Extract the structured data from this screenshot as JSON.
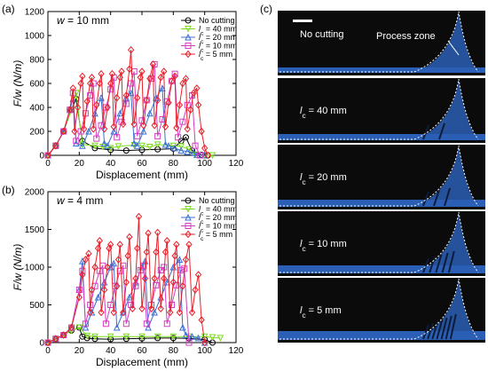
{
  "panels": {
    "a": {
      "label": "(a)",
      "annotation": "w = 10 mm"
    },
    "b": {
      "label": "(b)",
      "annotation": "w = 4 mm"
    },
    "c": {
      "label": "(c)"
    }
  },
  "photo_panel": {
    "labels": [
      "No cutting",
      "l_c = 40 mm",
      "l_c = 20 mm",
      "l_c = 10 mm",
      "l_c = 5 mm"
    ],
    "process_zone_label": "Process zone",
    "background_color": "#0b0b0b",
    "gel_color": "#2a5fb5",
    "dashed_color": "#ffffff"
  },
  "chart_data": [
    {
      "type": "line",
      "panel": "a",
      "annotation": "w = 10 mm",
      "xlabel": "Displacement (mm)",
      "ylabel": "F/w (N/m)",
      "xlim": [
        0,
        120
      ],
      "ylim": [
        0,
        1200
      ],
      "xticks": [
        0,
        20,
        40,
        60,
        80,
        100,
        120
      ],
      "yticks": [
        0,
        200,
        400,
        600,
        800,
        1000,
        1200
      ],
      "legend_position": "top-right",
      "series": [
        {
          "name": "No cutting",
          "color": "#000000",
          "marker": "circle",
          "x": [
            0,
            5,
            10,
            15,
            18,
            22,
            30,
            40,
            50,
            60,
            70,
            80,
            85,
            88,
            92,
            98,
            102
          ],
          "y": [
            0,
            80,
            200,
            380,
            470,
            120,
            60,
            45,
            40,
            45,
            50,
            55,
            120,
            150,
            40,
            5,
            0
          ]
        },
        {
          "name": "l_c = 40 mm",
          "color": "#7ddc1f",
          "marker": "triangle-down",
          "x": [
            0,
            5,
            10,
            15,
            18,
            22,
            30,
            35,
            40,
            45,
            55,
            60,
            65,
            70,
            80,
            85,
            90,
            94,
            100,
            105
          ],
          "y": [
            0,
            80,
            200,
            380,
            520,
            90,
            80,
            70,
            60,
            75,
            85,
            80,
            70,
            90,
            80,
            75,
            50,
            5,
            0,
            0
          ]
        },
        {
          "name": "l_c = 20 mm",
          "color": "#3b6fd4",
          "marker": "triangle-up",
          "x": [
            0,
            5,
            10,
            14,
            16,
            18,
            22,
            26,
            30,
            34,
            36,
            38,
            42,
            46,
            50,
            53,
            55,
            57,
            61,
            65,
            69,
            73,
            75,
            77,
            81,
            85,
            89,
            93,
            95,
            100
          ],
          "y": [
            0,
            80,
            200,
            380,
            470,
            100,
            80,
            200,
            350,
            480,
            100,
            80,
            200,
            350,
            480,
            520,
            100,
            80,
            200,
            350,
            480,
            560,
            90,
            80,
            60,
            40,
            30,
            20,
            5,
            0
          ]
        },
        {
          "name": "l_c = 10 mm",
          "color": "#d63cc4",
          "marker": "square",
          "x": [
            0,
            5,
            10,
            14,
            16,
            18,
            21,
            24,
            27,
            29,
            31,
            34,
            37,
            40,
            42,
            44,
            47,
            50,
            53,
            55,
            57,
            60,
            63,
            66,
            68,
            70,
            73,
            76,
            79,
            81,
            83,
            86,
            89,
            92,
            94,
            97
          ],
          "y": [
            0,
            80,
            200,
            380,
            520,
            120,
            200,
            350,
            500,
            600,
            140,
            250,
            400,
            550,
            650,
            150,
            280,
            430,
            600,
            700,
            160,
            290,
            460,
            640,
            760,
            160,
            300,
            450,
            620,
            680,
            150,
            280,
            420,
            500,
            80,
            0
          ]
        },
        {
          "name": "l_c = 5 mm",
          "color": "#e8202a",
          "marker": "diamond",
          "x": [
            0,
            5,
            10,
            14,
            16,
            17,
            19,
            21,
            22,
            23,
            25,
            27,
            28,
            29,
            31,
            33,
            34,
            36,
            38,
            40,
            41,
            42,
            44,
            46,
            47,
            48,
            50,
            52,
            53,
            55,
            57,
            59,
            60,
            61,
            63,
            65,
            67,
            68,
            70,
            72,
            74,
            75,
            77,
            79,
            81,
            82,
            84,
            86,
            88,
            89,
            91,
            93,
            95,
            96,
            98,
            100,
            102
          ],
          "y": [
            0,
            80,
            200,
            380,
            560,
            200,
            400,
            600,
            660,
            220,
            450,
            600,
            650,
            220,
            420,
            600,
            680,
            220,
            400,
            600,
            680,
            240,
            480,
            650,
            700,
            260,
            500,
            720,
            880,
            260,
            480,
            650,
            700,
            250,
            460,
            640,
            760,
            250,
            460,
            650,
            700,
            240,
            440,
            620,
            660,
            230,
            420,
            600,
            640,
            220,
            380,
            520,
            560,
            420,
            200,
            60,
            0
          ]
        }
      ]
    },
    {
      "type": "line",
      "panel": "b",
      "annotation": "w = 4 mm",
      "xlabel": "Displacement (mm)",
      "ylabel": "F/w (N/m)",
      "xlim": [
        0,
        120
      ],
      "ylim": [
        0,
        2000
      ],
      "xticks": [
        0,
        20,
        40,
        60,
        80,
        100,
        120
      ],
      "yticks": [
        0,
        500,
        1000,
        1500,
        2000
      ],
      "legend_position": "top-right",
      "series": [
        {
          "name": "No cutting",
          "color": "#000000",
          "marker": "circle",
          "x": [
            0,
            5,
            10,
            15,
            20,
            22,
            25,
            30,
            40,
            50,
            60,
            70,
            80,
            90,
            100,
            105
          ],
          "y": [
            0,
            50,
            100,
            160,
            200,
            80,
            60,
            50,
            45,
            50,
            55,
            60,
            60,
            55,
            40,
            0
          ]
        },
        {
          "name": "l_c = 40 mm",
          "color": "#7ddc1f",
          "marker": "triangle-down",
          "x": [
            0,
            5,
            10,
            15,
            20,
            25,
            30,
            40,
            50,
            60,
            70,
            80,
            90,
            100,
            105,
            110
          ],
          "y": [
            0,
            50,
            100,
            160,
            200,
            90,
            80,
            80,
            80,
            80,
            80,
            80,
            80,
            80,
            70,
            60
          ]
        },
        {
          "name": "l_c = 20 mm",
          "color": "#3b6fd4",
          "marker": "triangle-up",
          "x": [
            0,
            5,
            10,
            15,
            20,
            22,
            24,
            28,
            32,
            36,
            40,
            42,
            44,
            48,
            52,
            56,
            60,
            62,
            64,
            68,
            72,
            76,
            80,
            84,
            86,
            88,
            92,
            96,
            100
          ],
          "y": [
            0,
            50,
            100,
            200,
            700,
            1080,
            200,
            400,
            600,
            800,
            1000,
            1050,
            200,
            400,
            600,
            800,
            1000,
            1080,
            200,
            400,
            600,
            800,
            1000,
            1100,
            200,
            100,
            80,
            60,
            0
          ]
        },
        {
          "name": "l_c = 10 mm",
          "color": "#d63cc4",
          "marker": "square",
          "x": [
            0,
            5,
            10,
            15,
            20,
            22,
            24,
            27,
            30,
            33,
            35,
            37,
            40,
            43,
            46,
            48,
            50,
            53,
            56,
            59,
            61,
            63,
            66,
            69,
            72,
            74,
            76,
            79,
            82,
            85,
            87,
            90
          ],
          "y": [
            0,
            50,
            100,
            200,
            700,
            950,
            250,
            500,
            750,
            950,
            1020,
            250,
            500,
            750,
            950,
            1020,
            250,
            500,
            750,
            960,
            1020,
            250,
            500,
            760,
            960,
            1000,
            250,
            500,
            760,
            960,
            980,
            0
          ]
        },
        {
          "name": "l_c = 5 mm",
          "color": "#e8202a",
          "marker": "diamond",
          "x": [
            0,
            5,
            10,
            15,
            20,
            22,
            24,
            26,
            27,
            28,
            30,
            32,
            33,
            34,
            36,
            38,
            39,
            40,
            42,
            44,
            45,
            46,
            48,
            50,
            51,
            52,
            54,
            56,
            57,
            58,
            60,
            62,
            63,
            64,
            66,
            68,
            69,
            70,
            72,
            74,
            75,
            76,
            78,
            80,
            81,
            82,
            84,
            86,
            88,
            90,
            92,
            94,
            96,
            98,
            100
          ],
          "y": [
            0,
            50,
            100,
            200,
            600,
            900,
            1100,
            1180,
            400,
            700,
            1000,
            1250,
            1350,
            400,
            700,
            1000,
            1250,
            1300,
            400,
            750,
            1100,
            1300,
            400,
            800,
            1150,
            1400,
            450,
            850,
            1250,
            1670,
            450,
            850,
            1200,
            1450,
            450,
            850,
            1200,
            1460,
            450,
            850,
            1200,
            1350,
            400,
            800,
            1150,
            1300,
            400,
            750,
            1100,
            1300,
            400,
            700,
            900,
            300,
            0
          ]
        }
      ]
    }
  ]
}
